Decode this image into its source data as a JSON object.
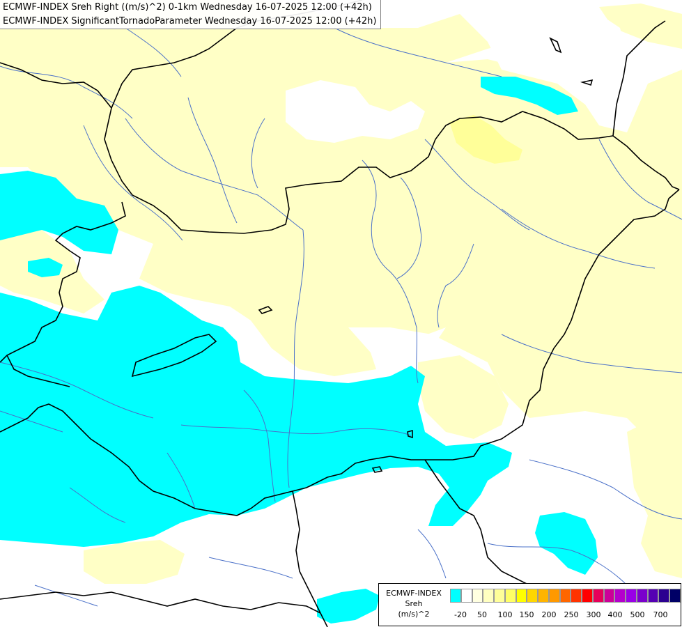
{
  "titles": {
    "line1": "ECMWF-INDEX Sreh Right ((m/s)^2) 0-1km Wednesday 16-07-2025 12:00 (+42h)",
    "line2": "ECMWF-INDEX SignificantTornadoParameter Wednesday 16-07-2025 12:00 (+42h)"
  },
  "legend": {
    "title_line1": "ECMWF-INDEX",
    "title_line2": "Sreh",
    "title_line3": "(m/s)^2",
    "colors": [
      "#00ffff",
      "#ffffff",
      "#ffffe0",
      "#ffffc0",
      "#ffff99",
      "#ffff66",
      "#ffff00",
      "#ffd700",
      "#ffb400",
      "#ff9900",
      "#ff6600",
      "#ff3300",
      "#ff0000",
      "#e6005a",
      "#cc0099",
      "#b400cc",
      "#9900e6",
      "#7a00cc",
      "#5500b3",
      "#2b0090",
      "#000066"
    ],
    "ticks": [
      "-20",
      "50",
      "100",
      "150",
      "200",
      "250",
      "300",
      "400",
      "500",
      "700"
    ]
  },
  "map_colors": {
    "cyan": "#00ffff",
    "pale_yellow": "#ffffc6",
    "yellow": "#ffff99",
    "border": "#000000",
    "river": "#4a70c8"
  }
}
